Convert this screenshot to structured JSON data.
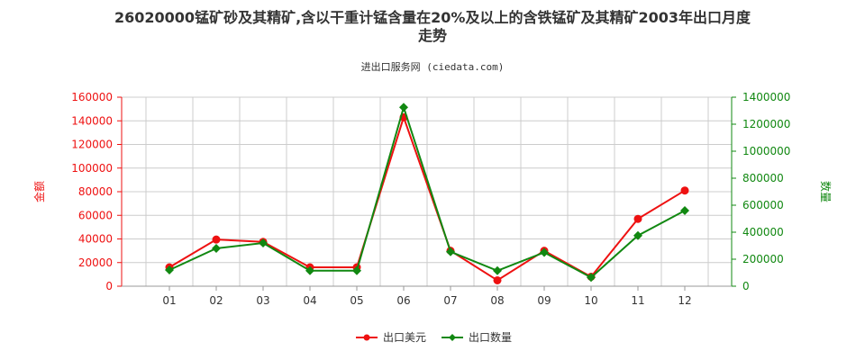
{
  "header": {
    "title_line1": "26020000锰矿砂及其精矿,含以干重计锰含量在20%及以上的含铁锰矿及其精矿2003年出口月度",
    "title_line2": "走势",
    "subtitle": "进出口服务网 (ciedata.com)"
  },
  "colors": {
    "amount": "#ee1111",
    "quantity": "#118811",
    "grid": "#cccccc",
    "axis_text": "#333333"
  },
  "chart_data": {
    "type": "line",
    "categories": [
      "01",
      "02",
      "03",
      "04",
      "05",
      "06",
      "07",
      "08",
      "09",
      "10",
      "11",
      "12"
    ],
    "y_left": {
      "label": "金额",
      "min": 0,
      "max": 160000,
      "ticks": [
        "0",
        "20000",
        "40000",
        "60000",
        "80000",
        "100000",
        "120000",
        "140000",
        "160000"
      ]
    },
    "y_right": {
      "label": "数量",
      "min": 0,
      "max": 1400000,
      "ticks": [
        "0",
        "200000",
        "400000",
        "600000",
        "800000",
        "1000000",
        "1200000",
        "1400000"
      ]
    },
    "series": [
      {
        "name": "出口美元",
        "axis": "left",
        "color": "#ee1111",
        "marker": "circle",
        "values": [
          16000,
          39500,
          37500,
          16000,
          16000,
          143000,
          30000,
          5000,
          30000,
          8000,
          57000,
          81000
        ]
      },
      {
        "name": "出口数量",
        "axis": "right",
        "color": "#118811",
        "marker": "diamond",
        "values": [
          120000,
          280000,
          320000,
          115000,
          115000,
          1325000,
          255000,
          115000,
          250000,
          65000,
          375000,
          560000
        ]
      }
    ],
    "grid": true,
    "legend_position": "bottom-center"
  }
}
